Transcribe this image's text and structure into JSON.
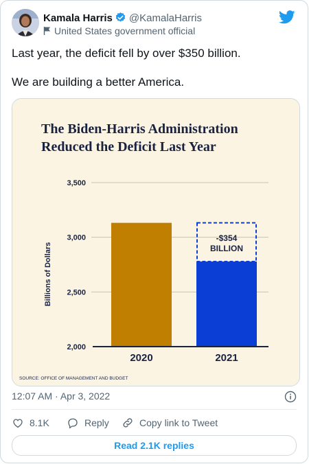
{
  "author": {
    "name": "Kamala Harris",
    "handle": "@KamalaHarris",
    "affiliation": "United States government official"
  },
  "tweet_text": {
    "line1": "Last year, the deficit fell by over $350 billion.",
    "line2": "We are building a better America."
  },
  "graphic": {
    "title_line1": "The Biden-Harris Administration",
    "title_line2": "Reduced the Deficit Last Year",
    "source": "SOURCE: OFFICE OF MANAGEMENT AND BUDGET",
    "annotation_line1": "-$354",
    "annotation_line2": "BILLION"
  },
  "chart_data": {
    "type": "bar",
    "title": "The Biden-Harris Administration Reduced the Deficit Last Year",
    "categories": [
      "2020",
      "2021"
    ],
    "values": [
      3132,
      2778
    ],
    "ylabel": "Billions of Dollars",
    "ylim": [
      2000,
      3500
    ],
    "yticks": [
      "2,000",
      "2,500",
      "3,000",
      "3,500"
    ],
    "ytick_values": [
      2000,
      2500,
      3000,
      3500
    ],
    "grid": true,
    "colors": [
      "#c07f00",
      "#0b3ed4"
    ],
    "annotation": "-$354 BILLION",
    "annotation_value": -354
  },
  "meta": {
    "timestamp": "12:07 AM · Apr 3, 2022"
  },
  "actions": {
    "likes": "8.1K",
    "reply": "Reply",
    "copy_link": "Copy link to Tweet",
    "read_replies": "Read 2.1K replies"
  },
  "colors": {
    "twitter_blue": "#1d9bf0",
    "chart_background": "#fbf4e3",
    "title_navy": "#1a2242"
  }
}
